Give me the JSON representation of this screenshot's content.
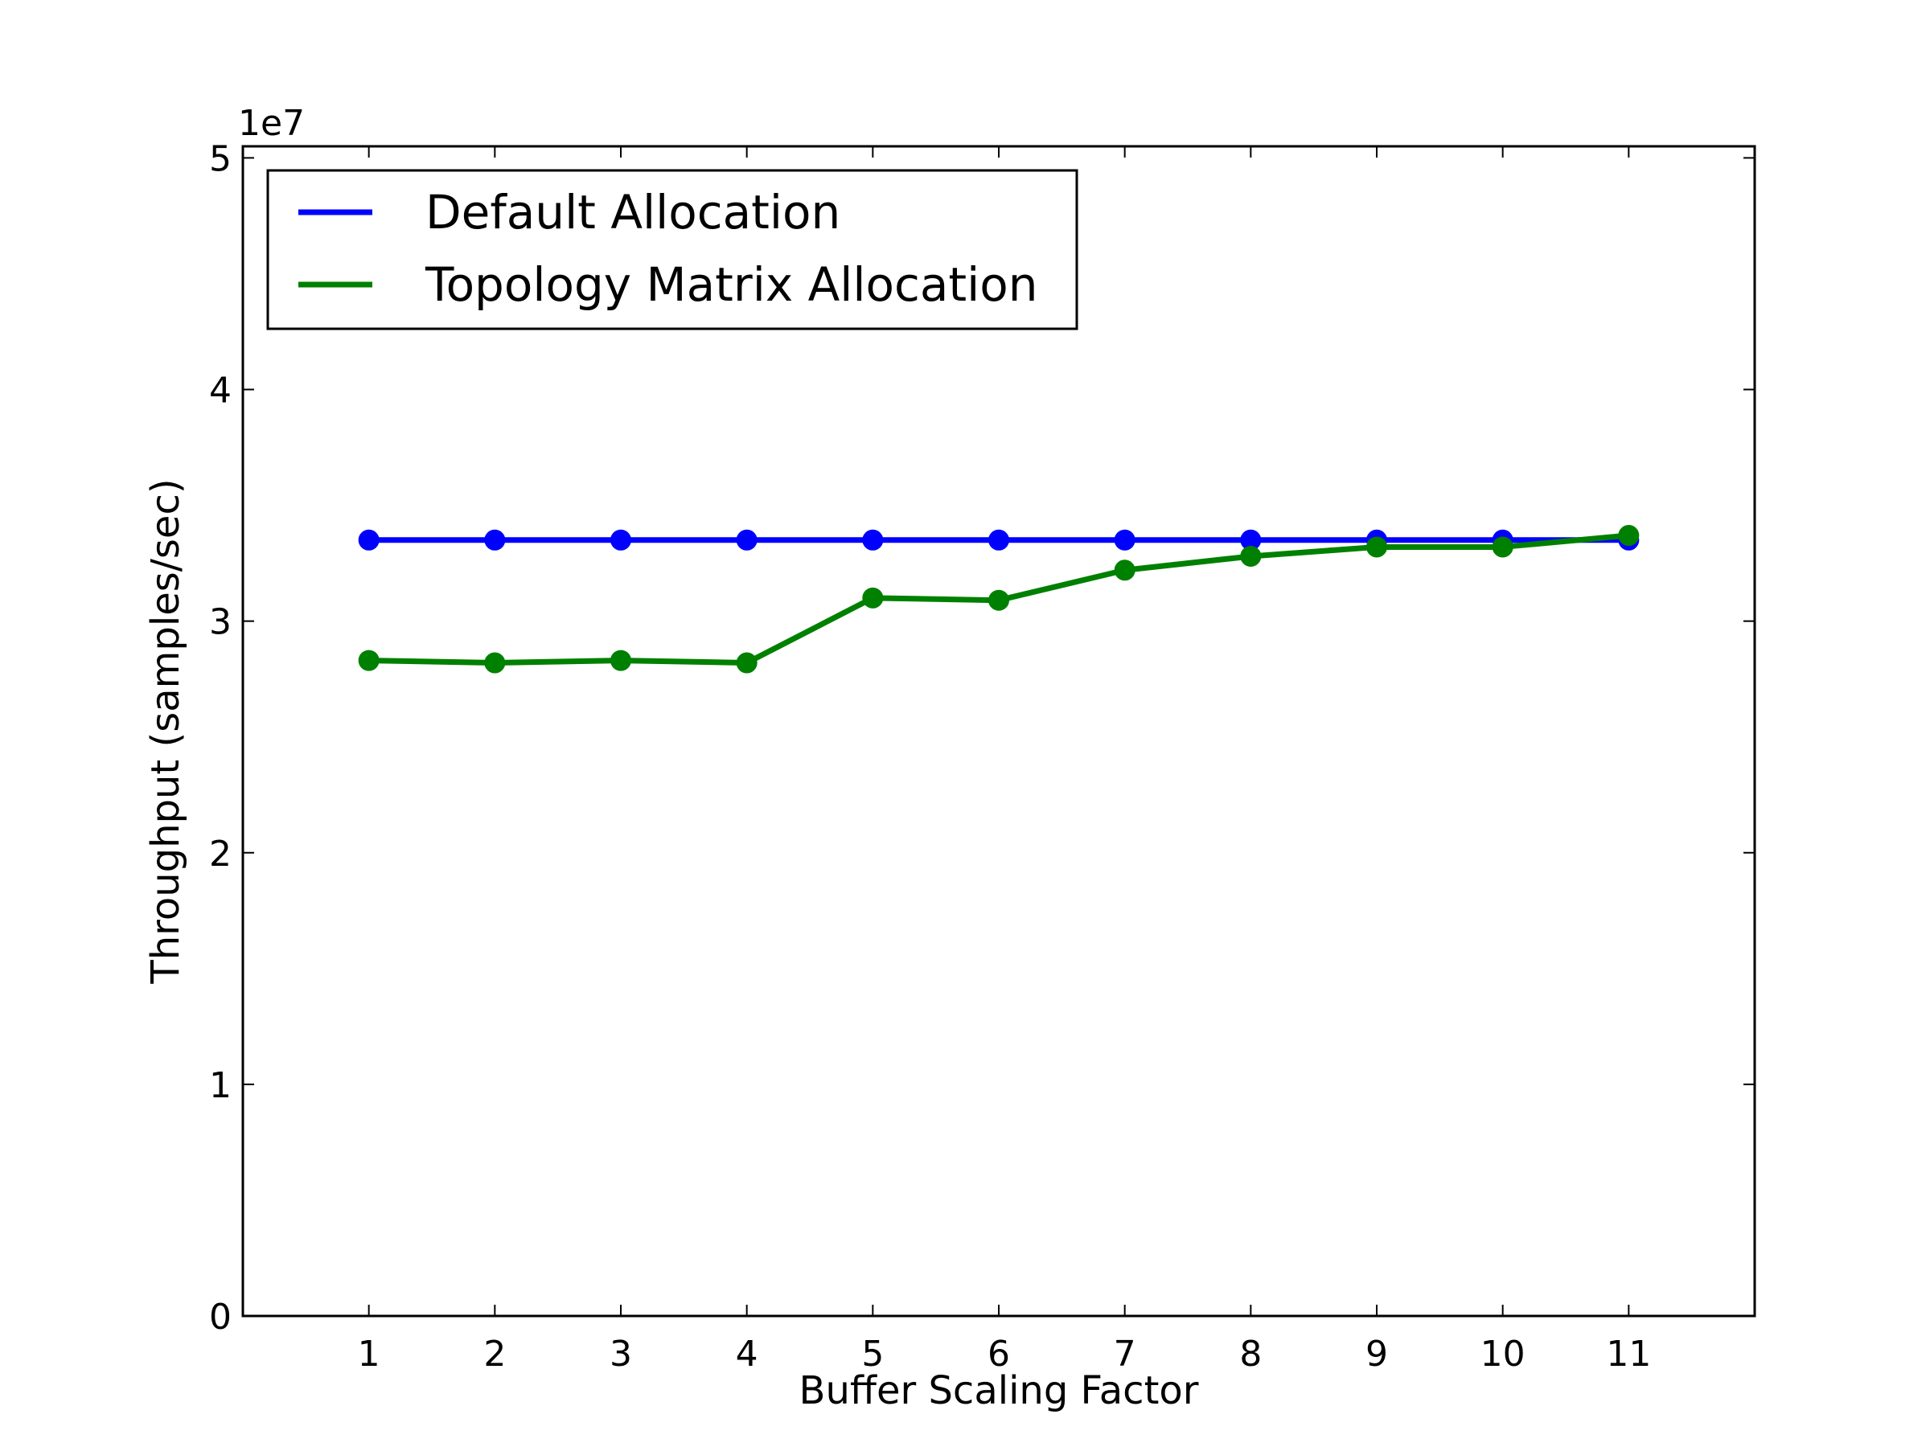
{
  "chart_data": {
    "type": "line",
    "xlabel": "Buffer Scaling Factor",
    "ylabel": "Throughput (samples/sec)",
    "y_offset_label": "1e7",
    "y_scale": 10000000,
    "xlim": [
      0,
      12
    ],
    "ylim": [
      0,
      50500000
    ],
    "x_ticks": [
      1,
      2,
      3,
      4,
      5,
      6,
      7,
      8,
      9,
      10,
      11
    ],
    "y_ticks": [
      0,
      10000000,
      20000000,
      30000000,
      40000000,
      50000000
    ],
    "y_tick_labels": [
      "0",
      "1",
      "2",
      "3",
      "4",
      "5"
    ],
    "grid": false,
    "legend_position": "top-left",
    "x": [
      1,
      2,
      3,
      4,
      5,
      6,
      7,
      8,
      9,
      10,
      11
    ],
    "series": [
      {
        "name": "Default Allocation",
        "color": "#0000ff",
        "values": [
          33500000,
          33500000,
          33500000,
          33500000,
          33500000,
          33500000,
          33500000,
          33500000,
          33500000,
          33500000,
          33500000
        ]
      },
      {
        "name": "Topology Matrix Allocation",
        "color": "#008000",
        "values": [
          28300000,
          28200000,
          28300000,
          28200000,
          31000000,
          30900000,
          32200000,
          32800000,
          33200000,
          33200000,
          33700000
        ]
      }
    ]
  }
}
